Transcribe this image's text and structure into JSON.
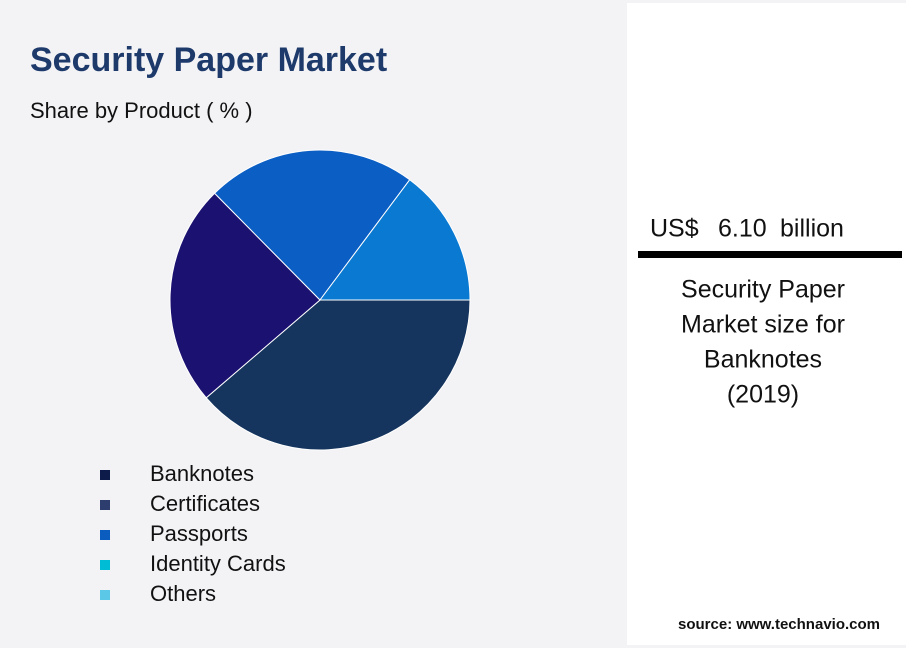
{
  "chart_data": {
    "type": "pie",
    "title": "Security Paper Market",
    "subtitle": "Share by Product ( % )",
    "categories": [
      "Banknotes",
      "Certificates",
      "Passports",
      "Identity Cards",
      "Others"
    ],
    "values": [
      38.7,
      23.9,
      22.6,
      14.8,
      0
    ],
    "colors": [
      "#15355f",
      "#1b1170",
      "#0a5ec4",
      "#0a79d1",
      "#5bc8e8"
    ],
    "legend_colors": [
      "#0d1b4a",
      "#2d3e6e",
      "#0a5cbf",
      "#00bcd4",
      "#5bc8e8"
    ]
  },
  "callout": {
    "currency": "US$",
    "amount": "6.10",
    "unit": "billion",
    "description": [
      "Security Paper",
      "Market size for",
      "Banknotes",
      "(2019)"
    ]
  },
  "source": "source: www.technavio.com"
}
